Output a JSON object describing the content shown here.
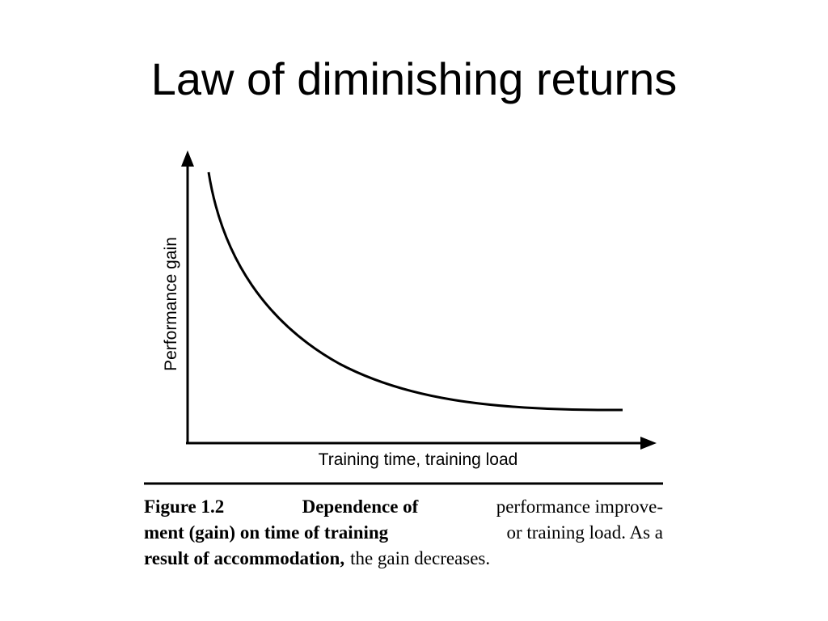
{
  "title": "Law of diminishing returns",
  "figure": {
    "y_axis_label": "Performance gain",
    "x_axis_label": "Training time, training load"
  },
  "caption": {
    "lines": [
      [
        {
          "text": "Figure 1.2",
          "bold": true
        },
        {
          "text": "Dependence of",
          "bold": true
        },
        {
          "text": "performance improve-",
          "bold": false
        }
      ],
      [
        {
          "text": "ment (gain) on time of training",
          "bold": true
        },
        {
          "text": "or training load. As a",
          "bold": false
        }
      ],
      [
        {
          "text": "result of accommodation,",
          "bold": true
        },
        {
          "text": "the gain decreases.",
          "bold": false
        }
      ]
    ]
  }
}
